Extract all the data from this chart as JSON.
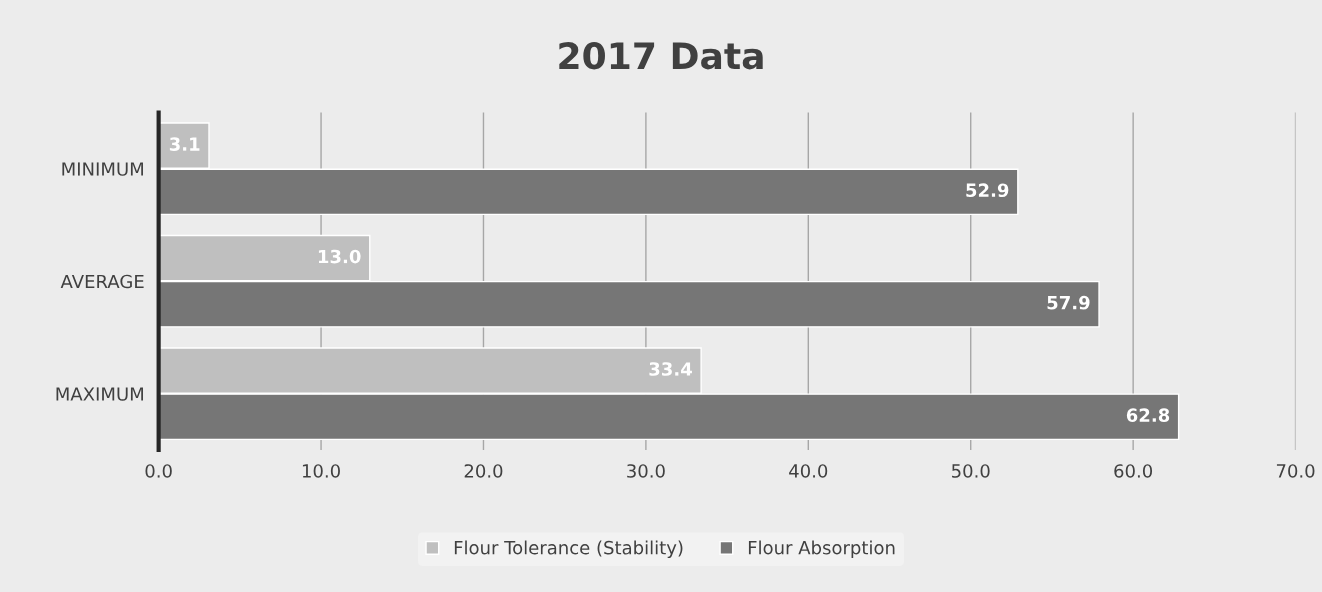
{
  "chart_data": {
    "type": "bar",
    "orientation": "horizontal",
    "title": "2017 Data",
    "categories": [
      "MINIMUM",
      "AVERAGE",
      "MAXIMUM"
    ],
    "series": [
      {
        "name": "Flour Tolerance (Stability)",
        "color": "#bfbfbf",
        "values": [
          3.1,
          13.0,
          33.4
        ],
        "value_labels": [
          "3.1",
          "13.0",
          "33.4"
        ]
      },
      {
        "name": "Flour Absorption",
        "color": "#767676",
        "values": [
          52.9,
          57.9,
          62.8
        ],
        "value_labels": [
          "52.9",
          "57.9",
          "62.8"
        ]
      }
    ],
    "xlim": [
      0,
      70
    ],
    "xticks": [
      {
        "value": 0,
        "label": "0.0"
      },
      {
        "value": 10,
        "label": "10.0"
      },
      {
        "value": 20,
        "label": "20.0"
      },
      {
        "value": 30,
        "label": "30.0"
      },
      {
        "value": 40,
        "label": "40.0"
      },
      {
        "value": 50,
        "label": "50.0"
      },
      {
        "value": 60,
        "label": "60.0"
      },
      {
        "value": 70,
        "label": "70.0"
      }
    ],
    "grid": "x",
    "legend": "bottom"
  }
}
